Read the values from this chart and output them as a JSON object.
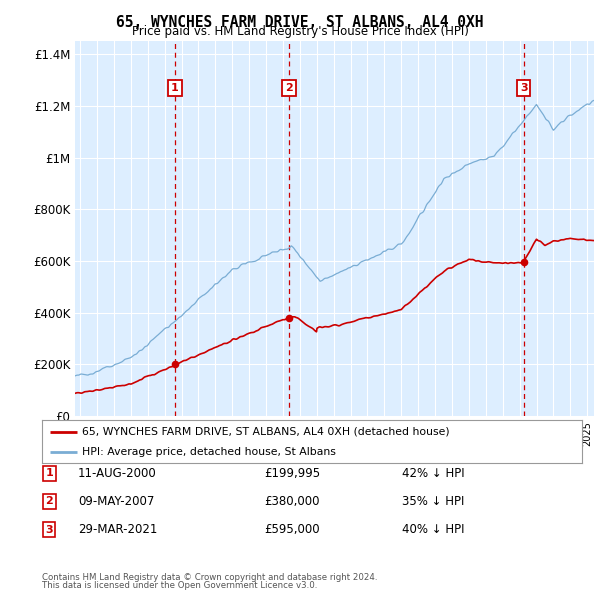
{
  "title": "65, WYNCHES FARM DRIVE, ST ALBANS, AL4 0XH",
  "subtitle": "Price paid vs. HM Land Registry's House Price Index (HPI)",
  "legend_line1": "65, WYNCHES FARM DRIVE, ST ALBANS, AL4 0XH (detached house)",
  "legend_line2": "HPI: Average price, detached house, St Albans",
  "sales": [
    {
      "num": 1,
      "date": "11-AUG-2000",
      "year": 2000.61,
      "price": 199995,
      "label": "42% ↓ HPI"
    },
    {
      "num": 2,
      "date": "09-MAY-2007",
      "year": 2007.36,
      "price": 380000,
      "label": "35% ↓ HPI"
    },
    {
      "num": 3,
      "date": "29-MAR-2021",
      "year": 2021.24,
      "price": 595000,
      "label": "40% ↓ HPI"
    }
  ],
  "table_rows": [
    {
      "num": "1",
      "date": "11-AUG-2000",
      "price": "£199,995",
      "label": "42% ↓ HPI"
    },
    {
      "num": "2",
      "date": "09-MAY-2007",
      "price": "£380,000",
      "label": "35% ↓ HPI"
    },
    {
      "num": "3",
      "date": "29-MAR-2021",
      "price": "£595,000",
      "label": "40% ↓ HPI"
    }
  ],
  "footer_line1": "Contains HM Land Registry data © Crown copyright and database right 2024.",
  "footer_line2": "This data is licensed under the Open Government Licence v3.0.",
  "plot_bg_color": "#ddeeff",
  "fig_bg_color": "#ffffff",
  "red_color": "#cc0000",
  "blue_color": "#7aadd4",
  "grid_color": "#ffffff",
  "ylim": [
    0,
    1450000
  ],
  "yticks": [
    0,
    200000,
    400000,
    600000,
    800000,
    1000000,
    1200000,
    1400000
  ],
  "ytick_labels": [
    "£0",
    "£200K",
    "£400K",
    "£600K",
    "£800K",
    "£1M",
    "£1.2M",
    "£1.4M"
  ],
  "xmin": 1994.7,
  "xmax": 2025.4
}
